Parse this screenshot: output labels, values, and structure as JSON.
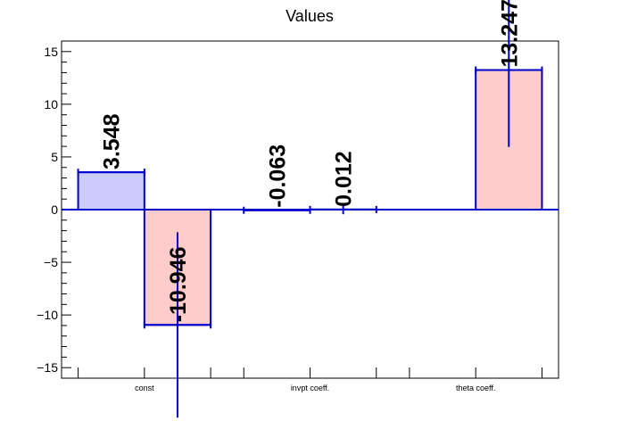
{
  "chart_data": {
    "type": "bar",
    "title": "Values",
    "xlabel": "",
    "ylabel": "",
    "ylim": [
      -16,
      16
    ],
    "yticks": [
      -15,
      -10,
      -5,
      0,
      5,
      10,
      15
    ],
    "ytick_labels": [
      "−15",
      "−10",
      "−5",
      "0",
      "5",
      "10",
      "15"
    ],
    "categories": [
      "const",
      "invpt coeff.",
      "theta coeff."
    ],
    "series": [
      {
        "fill": "#ccccff",
        "stroke": "#0000cc",
        "values": [
          3.548,
          -0.063,
          null
        ]
      },
      {
        "fill": "#ffcccc",
        "stroke": "#0000cc",
        "values": [
          -10.946,
          0.012,
          13.247
        ]
      }
    ],
    "value_labels": [
      [
        "3.548",
        "-0.063",
        ""
      ],
      [
        "-10.946",
        "0.012",
        "13.247"
      ]
    ],
    "error_bars": [
      [
        0,
        0,
        null
      ],
      [
        8.8,
        0.45,
        7.3
      ]
    ],
    "colors": {
      "axis": "#000000",
      "bar_outline": "#0000cc"
    },
    "grid": false,
    "legend": "none"
  }
}
